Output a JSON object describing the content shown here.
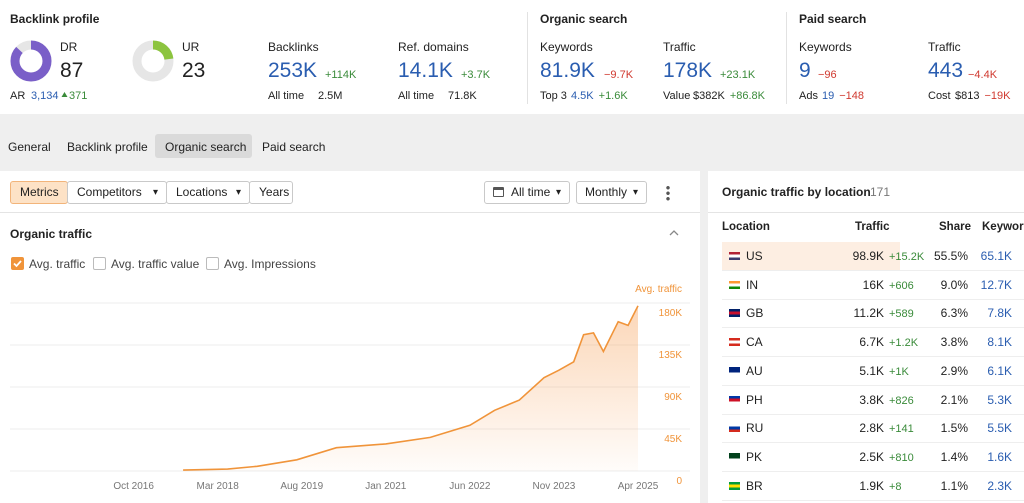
{
  "header": {
    "backlink_profile": {
      "title": "Backlink profile",
      "dr": {
        "label": "DR",
        "value": 87
      },
      "ur": {
        "label": "UR",
        "value": 23
      },
      "ar": {
        "label": "AR",
        "value": "3,134",
        "change": "371"
      },
      "backlinks": {
        "label": "Backlinks",
        "value": "253K",
        "change": "+114K",
        "sub_label": "All time",
        "sub_value": "2.5M"
      },
      "ref_domains": {
        "label": "Ref. domains",
        "value": "14.1K",
        "change": "+3.7K",
        "sub_label": "All time",
        "sub_value": "71.8K"
      }
    },
    "organic_search": {
      "title": "Organic search",
      "keywords": {
        "label": "Keywords",
        "value": "81.9K",
        "change": "−9.7K",
        "sub_label": "Top 3",
        "sub_value": "4.5K",
        "sub_change": "+1.6K"
      },
      "traffic": {
        "label": "Traffic",
        "value": "178K",
        "change": "+23.1K",
        "sub_label": "Value",
        "sub_value": "$382K",
        "sub_change": "+86.8K"
      }
    },
    "paid_search": {
      "title": "Paid search",
      "keywords": {
        "label": "Keywords",
        "value": "9",
        "change": "−96",
        "sub_label": "Ads",
        "sub_value": "19",
        "sub_change": "−148"
      },
      "traffic": {
        "label": "Traffic",
        "value": "443",
        "change": "−4.4K",
        "sub_label": "Cost",
        "sub_value": "$813",
        "sub_change": "−19K"
      }
    }
  },
  "tabs": [
    {
      "label": "General"
    },
    {
      "label": "Backlink profile"
    },
    {
      "label": "Organic search",
      "active": true
    },
    {
      "label": "Paid search"
    }
  ],
  "toolbar": {
    "buttons": [
      "Metrics",
      "Competitors",
      "Locations",
      "Years"
    ],
    "range": "All time",
    "interval": "Monthly"
  },
  "chart_panel": {
    "title": "Organic traffic",
    "checkboxes": [
      {
        "label": "Avg. traffic",
        "checked": true
      },
      {
        "label": "Avg. traffic value",
        "checked": false
      },
      {
        "label": "Avg. Impressions",
        "checked": false
      }
    ]
  },
  "chart_data": {
    "type": "line",
    "x": [
      "2017-08",
      "2018-05",
      "2018-11",
      "2019-07",
      "2020-03",
      "2021-01",
      "2021-10",
      "2022-06",
      "2022-11",
      "2023-04",
      "2023-09",
      "2023-12",
      "2024-03",
      "2024-05",
      "2024-07",
      "2024-09",
      "2024-12",
      "2025-02",
      "2025-04"
    ],
    "series": [
      {
        "name": "Avg. traffic",
        "color": "#f0943a",
        "values": [
          1000,
          2000,
          5000,
          12000,
          25000,
          29000,
          36000,
          49000,
          65000,
          76000,
          100000,
          108000,
          117000,
          146000,
          148000,
          128000,
          160000,
          156000,
          177000
        ]
      }
    ],
    "xlim": [
      "2014-09",
      "2025-04"
    ],
    "xticks": [
      {
        "value": "2016-10",
        "label": "Oct 2016"
      },
      {
        "value": "2018-03",
        "label": "Mar 2018"
      },
      {
        "value": "2019-08",
        "label": "Aug 2019"
      },
      {
        "value": "2021-01",
        "label": "Jan 2021"
      },
      {
        "value": "2022-06",
        "label": "Jun 2022"
      },
      {
        "value": "2023-11",
        "label": "Nov 2023"
      },
      {
        "value": "2025-04",
        "label": "Apr 2025"
      }
    ],
    "ylim": [
      0,
      180000
    ],
    "yticks": [
      0,
      {
        "value": 45000,
        "label": "45K"
      },
      {
        "value": 90000,
        "label": "90K"
      },
      {
        "value": 135000,
        "label": "135K"
      },
      {
        "value": 180000,
        "label": "180K"
      }
    ],
    "grid": true
  },
  "location_table": {
    "title": "Organic traffic by location",
    "count": "171",
    "columns": [
      "Location",
      "Traffic",
      "Share",
      "Keywords"
    ],
    "rows": [
      {
        "location": "US",
        "traffic": "98.9K",
        "change": "+15.2K",
        "share": "55.5%",
        "keywords": "65.1K"
      },
      {
        "location": "IN",
        "traffic": "16K",
        "change": "+606",
        "share": "9.0%",
        "keywords": "12.7K"
      },
      {
        "location": "GB",
        "traffic": "11.2K",
        "change": "+589",
        "share": "6.3%",
        "keywords": "7.8K"
      },
      {
        "location": "CA",
        "traffic": "6.7K",
        "change": "+1.2K",
        "share": "3.8%",
        "keywords": "8.1K"
      },
      {
        "location": "AU",
        "traffic": "5.1K",
        "change": "+1K",
        "share": "2.9%",
        "keywords": "6.1K"
      },
      {
        "location": "PH",
        "traffic": "3.8K",
        "change": "+826",
        "share": "2.1%",
        "keywords": "5.3K"
      },
      {
        "location": "RU",
        "traffic": "2.8K",
        "change": "+141",
        "share": "1.5%",
        "keywords": "5.5K"
      },
      {
        "location": "PK",
        "traffic": "2.5K",
        "change": "+810",
        "share": "1.4%",
        "keywords": "1.6K"
      },
      {
        "location": "BR",
        "traffic": "1.9K",
        "change": "+8",
        "share": "1.1%",
        "keywords": "2.3K"
      }
    ]
  }
}
